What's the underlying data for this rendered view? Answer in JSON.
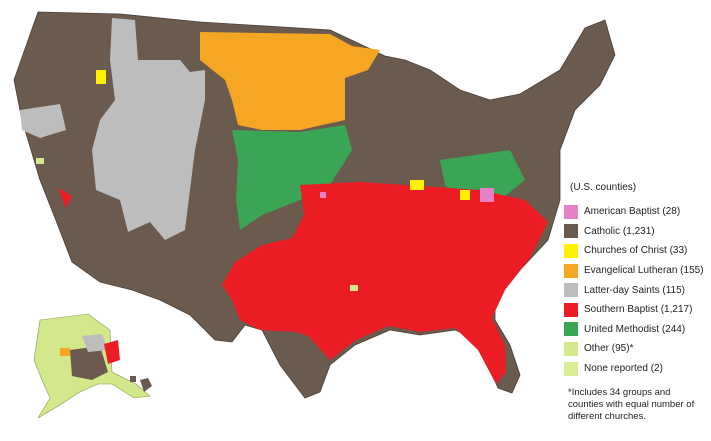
{
  "legend": {
    "caption": "(U.S. counties)",
    "items": [
      {
        "label": "American Baptist (28)",
        "color": "#e882c8"
      },
      {
        "label": "Catholic (1,231)",
        "color": "#6b5a4e"
      },
      {
        "label": "Churches of Christ (33)",
        "color": "#fff200"
      },
      {
        "label": "Evangelical Lutheran (155)",
        "color": "#f5a623"
      },
      {
        "label": "Latter-day Saints (115)",
        "color": "#bdbdbd"
      },
      {
        "label": "Southern Baptist (1,217)",
        "color": "#ec1c24"
      },
      {
        "label": "United Methodist (244)",
        "color": "#3aa655"
      },
      {
        "label": "Other (95)*",
        "color": "#d2e88a"
      },
      {
        "label": "None reported (2)",
        "color": "#d9ed92"
      }
    ],
    "footnote": "*Includes 34 groups and counties with equal number of different churches."
  }
}
